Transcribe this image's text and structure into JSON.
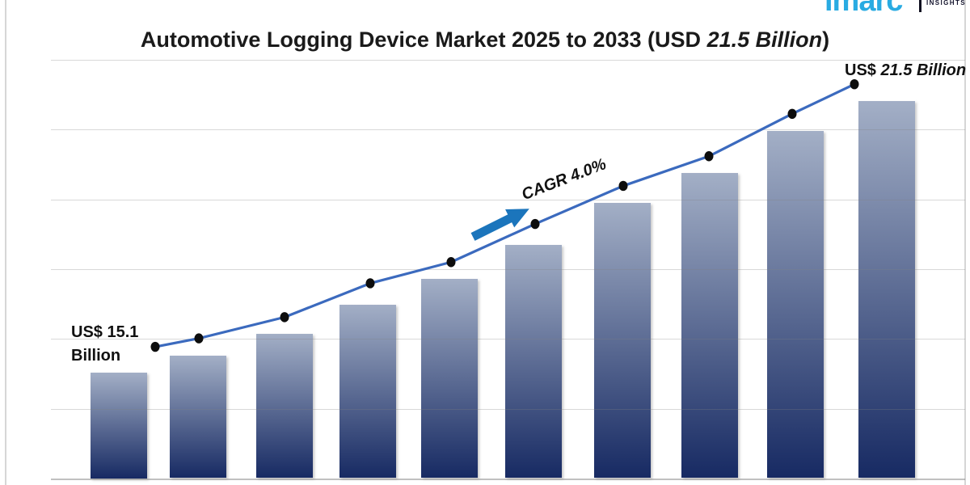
{
  "logo": {
    "brand": "imarc",
    "suffix": "INSIGHTS"
  },
  "title": {
    "prefix": "Automotive Logging Device Market 2025 to 2033 (USD",
    "italic": "21.5 Billion",
    "suffix": ")"
  },
  "annotations": {
    "start_line1": "US$ 15.1",
    "start_line2": "Billion",
    "end_prefix": "US$",
    "end_italic": "21.5 Billion",
    "cagr": "CAGR 4.0%"
  },
  "colors": {
    "background": "#FFFFFF",
    "title_text": "#1A1A1A",
    "bar_gradient_top": "#A3AFC6",
    "bar_gradient_bottom": "#172A63",
    "trend_line": "#3B6ABE",
    "data_dot": "#0D0D0D",
    "arrow": "#1B75BC",
    "gridline": "#D9D9D9",
    "border": "#D6D6D6",
    "logo_brand": "#29ABE2",
    "logo_text": "#15152E"
  },
  "chart_data": {
    "type": "bar+line",
    "title": "Automotive Logging Device Market 2025 to 2033 (USD 21.5 Billion)",
    "unit": "USD Billion",
    "period_label": "2025 to 2033",
    "start_value_label": "US$ 15.1 Billion",
    "end_value_label": "US$ 21.5 Billion",
    "cagr_label": "CAGR 4.0%",
    "bar_count": 10,
    "x_tick_labels_visible": false,
    "y_axis_visible": false,
    "gridlines": {
      "horizontal": 7,
      "visible": true
    },
    "legend": false,
    "values": [
      15.1,
      15.5,
      16.0,
      16.7,
      17.3,
      18.1,
      19.1,
      19.8,
      20.8,
      21.5
    ],
    "line_values": [
      15.7,
      15.9,
      16.4,
      17.2,
      17.7,
      18.6,
      19.5,
      20.2,
      21.2,
      21.9
    ]
  }
}
